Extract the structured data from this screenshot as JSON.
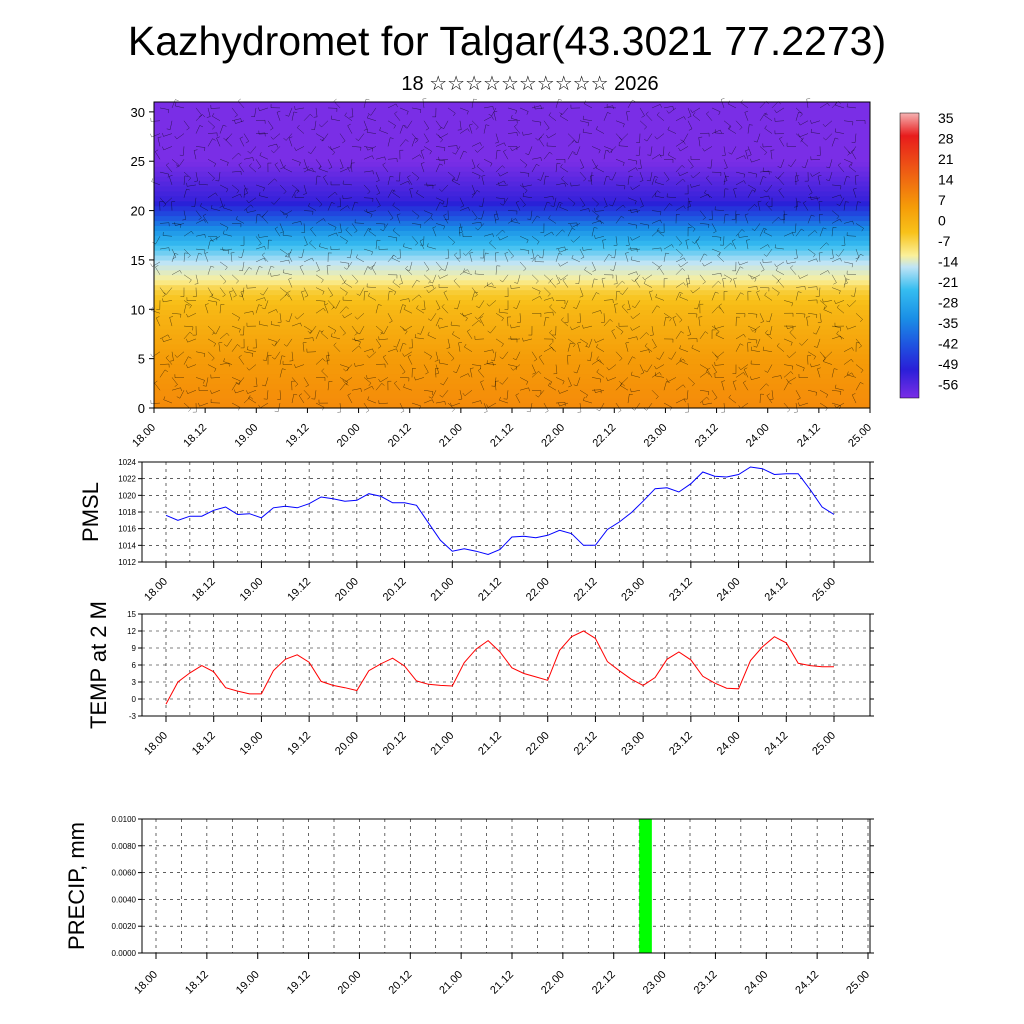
{
  "title": "Kazhydromet for Talgar(43.3021 77.2273)",
  "subtitle": "18 ☆☆☆☆☆☆☆☆☆☆ 2026",
  "colors": {
    "pmsl_line": "#0000ff",
    "temp_line": "#ff0000",
    "precip_bar": "#00ff00",
    "wind_barb": "#000000"
  },
  "chart_data": [
    {
      "type": "heatmap",
      "name": "Upper-air temperature cross-section with wind barbs",
      "x_tick_labels": [
        "18.00",
        "18.12",
        "19.00",
        "19.12",
        "20.00",
        "20.12",
        "21.00",
        "21.12",
        "22.00",
        "22.12",
        "23.00",
        "23.12",
        "24.00",
        "24.12",
        "25.00"
      ],
      "y_ticks": [
        0,
        5,
        10,
        15,
        20,
        25,
        30
      ],
      "ylim": [
        0,
        31
      ],
      "colorbar_labels": [
        "35",
        "28",
        "21",
        "14",
        "7",
        "0",
        "-7",
        "-14",
        "-21",
        "-28",
        "-35",
        "-42",
        "-49",
        "-56"
      ],
      "colorbar_stops": [
        "#f5b3b3",
        "#e81c1c",
        "#e8331b",
        "#ee5a14",
        "#f47d0c",
        "#f59c08",
        "#f8c21a",
        "#faf09a",
        "#bfe4f5",
        "#36bdf0",
        "#1a8fe6",
        "#1f4fe0",
        "#2a1fd8",
        "#7a2ee6"
      ],
      "level_temperature_profile": [
        {
          "level": 0,
          "temp": 4
        },
        {
          "level": 5,
          "temp": 0
        },
        {
          "level": 10,
          "temp": -5
        },
        {
          "level": 12,
          "temp": -9
        },
        {
          "level": 13,
          "temp": -14
        },
        {
          "level": 15,
          "temp": -22
        },
        {
          "level": 18,
          "temp": -34
        },
        {
          "level": 21,
          "temp": -50
        },
        {
          "level": 25,
          "temp": -56
        },
        {
          "level": 31,
          "temp": -60
        }
      ]
    },
    {
      "type": "line",
      "ylabel": "PMSL",
      "ylim": [
        1012,
        1024
      ],
      "y_ticks": [
        1012,
        1014,
        1016,
        1018,
        1020,
        1022,
        1024
      ],
      "x_tick_labels": [
        "18.00",
        "18.12",
        "19.00",
        "19.12",
        "20.00",
        "20.12",
        "21.00",
        "21.12",
        "22.00",
        "22.12",
        "23.00",
        "23.12",
        "24.00",
        "24.12",
        "25.00"
      ],
      "x_hours": [
        0,
        3,
        6,
        9,
        12,
        15,
        18,
        21,
        24,
        27,
        30,
        33,
        36,
        39,
        42,
        45,
        48,
        51,
        54,
        57,
        60,
        63,
        66,
        69,
        72,
        75,
        78,
        81,
        84,
        87,
        90,
        93,
        96,
        99,
        102,
        105,
        108,
        111,
        114,
        117,
        120,
        123,
        126,
        129,
        132,
        135,
        138,
        141,
        144,
        147,
        150,
        153,
        156,
        159,
        162,
        165,
        168
      ],
      "values": [
        1017.6,
        1017.0,
        1017.5,
        1017.5,
        1018.2,
        1018.6,
        1017.7,
        1017.8,
        1017.3,
        1018.5,
        1018.7,
        1018.5,
        1019.0,
        1019.8,
        1019.6,
        1019.3,
        1019.4,
        1020.2,
        1019.9,
        1019.1,
        1019.1,
        1018.8,
        1016.7,
        1014.6,
        1013.3,
        1013.6,
        1013.3,
        1012.9,
        1013.5,
        1015.0,
        1015.1,
        1014.9,
        1015.2,
        1015.8,
        1015.4,
        1014.0,
        1014.0,
        1015.9,
        1016.8,
        1017.9,
        1019.3,
        1020.8,
        1020.9,
        1020.4,
        1021.4,
        1022.8,
        1022.3,
        1022.2,
        1022.5,
        1023.4,
        1023.2,
        1022.5,
        1022.6,
        1022.6,
        1020.7,
        1018.6,
        1017.7
      ]
    },
    {
      "type": "line",
      "ylabel": "TEMP at 2 M",
      "ylim": [
        -3,
        15
      ],
      "y_ticks": [
        -3,
        0,
        3,
        6,
        9,
        12,
        15
      ],
      "x_tick_labels": [
        "18.00",
        "18.12",
        "19.00",
        "19.12",
        "20.00",
        "20.12",
        "21.00",
        "21.12",
        "22.00",
        "22.12",
        "23.00",
        "23.12",
        "24.00",
        "24.12",
        "25.00"
      ],
      "x_hours": [
        0,
        3,
        6,
        9,
        12,
        15,
        18,
        21,
        24,
        27,
        30,
        33,
        36,
        39,
        42,
        45,
        48,
        51,
        54,
        57,
        60,
        63,
        66,
        69,
        72,
        75,
        78,
        81,
        84,
        87,
        90,
        93,
        96,
        99,
        102,
        105,
        108,
        111,
        114,
        117,
        120,
        123,
        126,
        129,
        132,
        135,
        138,
        141,
        144,
        147,
        150,
        153,
        156,
        159,
        162,
        165,
        168
      ],
      "values": [
        -0.9,
        3.0,
        4.6,
        5.9,
        4.8,
        2.0,
        1.4,
        0.9,
        0.9,
        5.0,
        7.0,
        7.8,
        6.5,
        3.1,
        2.4,
        2.0,
        1.5,
        5.0,
        6.2,
        7.2,
        5.8,
        3.2,
        2.6,
        2.4,
        2.3,
        6.4,
        8.8,
        10.3,
        8.3,
        5.5,
        4.5,
        3.9,
        3.3,
        8.6,
        11.0,
        12.0,
        10.7,
        6.6,
        5.0,
        3.5,
        2.4,
        3.8,
        7.0,
        8.3,
        6.9,
        4.0,
        2.8,
        1.9,
        1.8,
        6.8,
        9.2,
        11.0,
        9.9,
        6.3,
        5.9,
        5.7,
        5.7
      ]
    },
    {
      "type": "bar",
      "ylabel": "PRECIP, mm",
      "ylim": [
        0,
        0.01
      ],
      "y_tick_labels": [
        "0.0000",
        "0.0020",
        "0.0040",
        "0.0060",
        "0.0080",
        "0.0100"
      ],
      "x_tick_labels": [
        "18.00",
        "18.12",
        "19.00",
        "19.12",
        "20.00",
        "20.12",
        "21.00",
        "21.12",
        "22.00",
        "22.12",
        "23.00",
        "23.12",
        "24.00",
        "24.12",
        "25.00"
      ],
      "bars": [
        {
          "x_hours": 114,
          "width_hours": 3,
          "value": 0.01
        }
      ]
    }
  ]
}
